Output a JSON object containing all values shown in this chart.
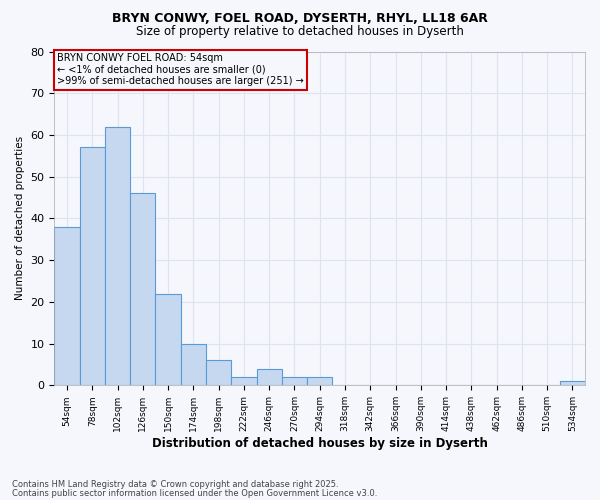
{
  "title1": "BRYN CONWY, FOEL ROAD, DYSERTH, RHYL, LL18 6AR",
  "title2": "Size of property relative to detached houses in Dyserth",
  "xlabel": "Distribution of detached houses by size in Dyserth",
  "ylabel": "Number of detached properties",
  "categories": [
    "54sqm",
    "78sqm",
    "102sqm",
    "126sqm",
    "150sqm",
    "174sqm",
    "198sqm",
    "222sqm",
    "246sqm",
    "270sqm",
    "294sqm",
    "318sqm",
    "342sqm",
    "366sqm",
    "390sqm",
    "414sqm",
    "438sqm",
    "462sqm",
    "486sqm",
    "510sqm",
    "534sqm"
  ],
  "values": [
    38,
    57,
    62,
    46,
    22,
    10,
    6,
    2,
    4,
    2,
    2,
    0,
    0,
    0,
    0,
    0,
    0,
    0,
    0,
    0,
    1
  ],
  "bar_color": "#c5d8f0",
  "bar_edge_color": "#5b9bd5",
  "background_color": "#f5f7fc",
  "grid_color": "#dde4ef",
  "ylim": [
    0,
    80
  ],
  "yticks": [
    0,
    10,
    20,
    30,
    40,
    50,
    60,
    70,
    80
  ],
  "annotation_box_text": "BRYN CONWY FOEL ROAD: 54sqm\n← <1% of detached houses are smaller (0)\n>99% of semi-detached houses are larger (251) →",
  "annotation_box_color": "#cc0000",
  "footnote1": "Contains HM Land Registry data © Crown copyright and database right 2025.",
  "footnote2": "Contains public sector information licensed under the Open Government Licence v3.0."
}
